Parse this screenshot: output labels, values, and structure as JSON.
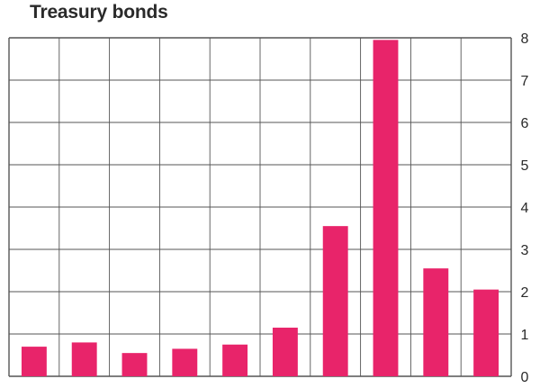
{
  "chart_data": {
    "type": "bar",
    "title": "Treasury bonds",
    "xlabel": "",
    "ylabel": "",
    "categories": [
      "",
      "",
      "",
      "",
      "",
      "",
      "",
      "",
      "",
      ""
    ],
    "values": [
      0.7,
      0.8,
      0.55,
      0.65,
      0.75,
      1.15,
      3.55,
      7.95,
      2.55,
      2.05
    ],
    "ylim": [
      0,
      8
    ],
    "yticks": [
      "0",
      "1",
      "2",
      "3",
      "4",
      "5",
      "6",
      "7",
      "8"
    ],
    "y_axis_side": "right",
    "grid": true,
    "bar_color": "#e8246a",
    "grid_color": "#555555"
  }
}
